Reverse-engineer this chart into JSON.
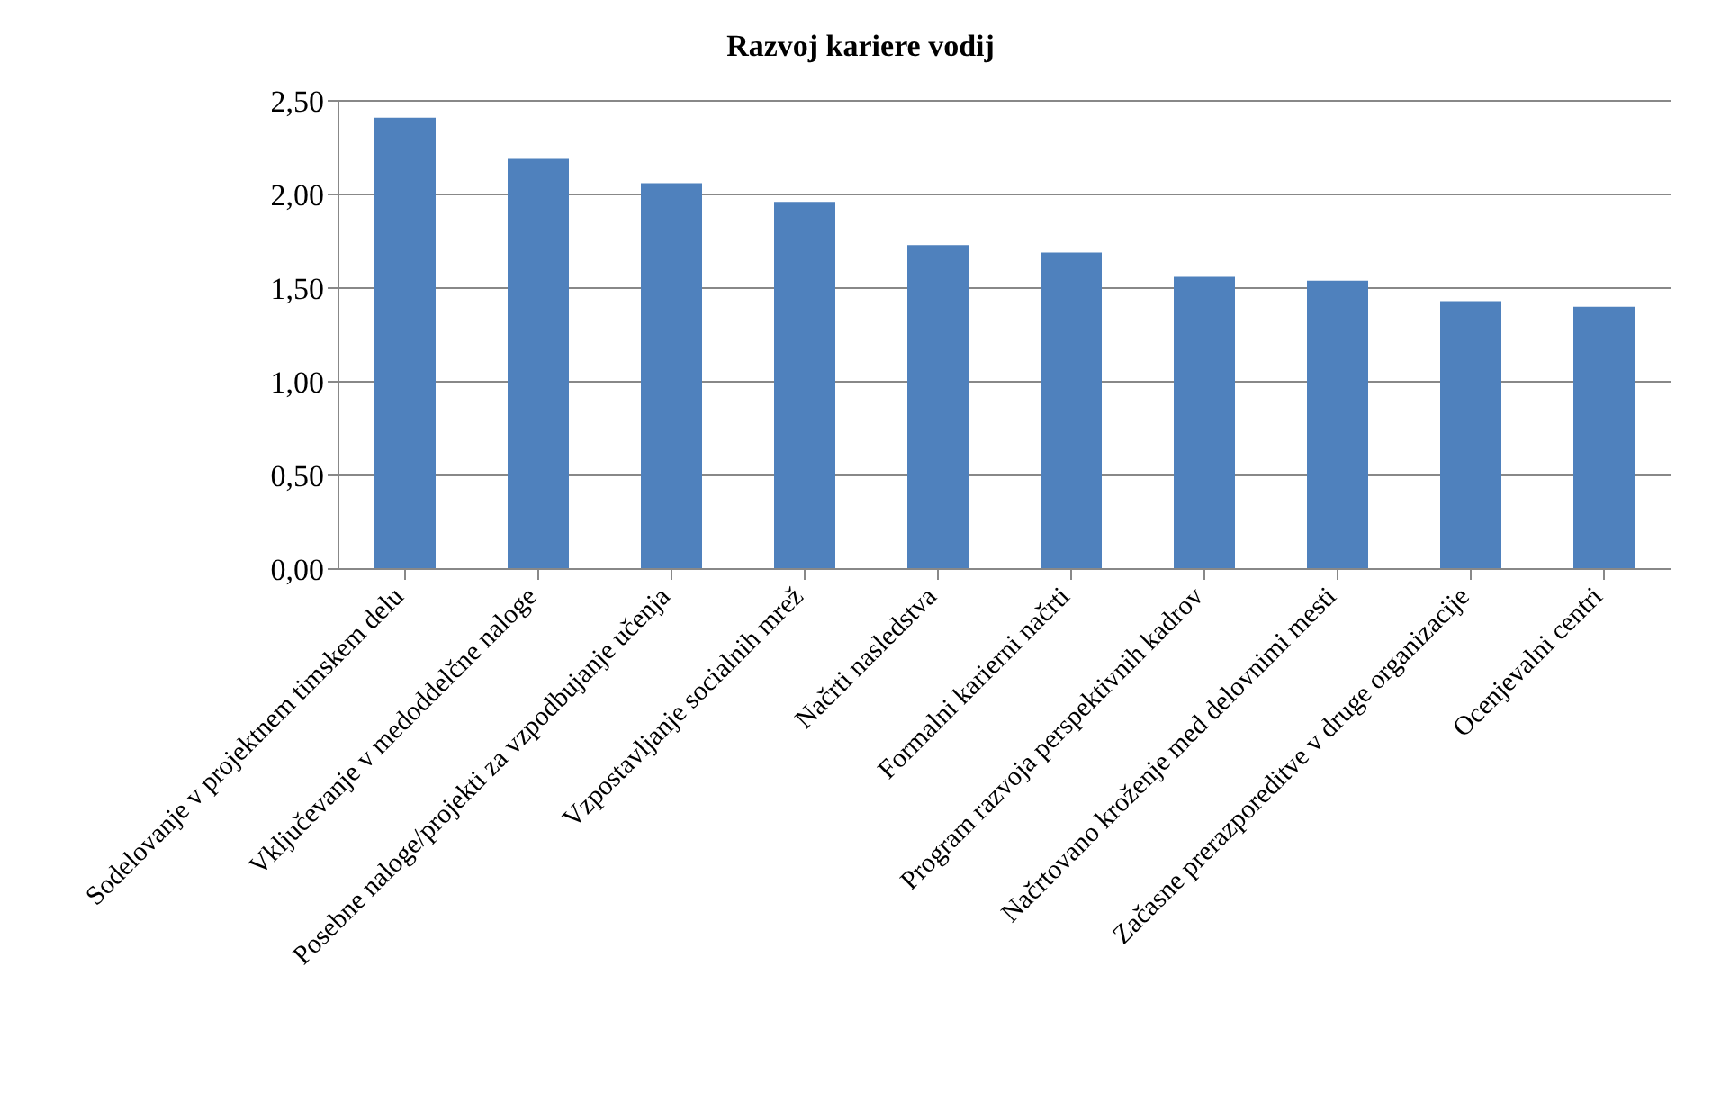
{
  "chart_data": {
    "type": "bar",
    "title": "Razvoj kariere vodij",
    "categories": [
      "Sodelovanje v projektnem timskem delu",
      "Vključevanje v medoddelčne naloge",
      "Posebne naloge/projekti za vzpodbujanje učenja",
      "Vzpostavljanje socialnih mrež",
      "Načrti nasledstva",
      "Formalni karierni načrti",
      "Program razvoja perspektivnih kadrov",
      "Načrtovano kroženje med delovnimi mesti",
      "Začasne prerazporeditve v druge organizacije",
      "Ocenjevalni centri"
    ],
    "values": [
      2.41,
      2.19,
      2.06,
      1.96,
      1.73,
      1.69,
      1.56,
      1.54,
      1.43,
      1.4
    ],
    "color": "#4f81bd",
    "ylim": [
      0,
      2.5
    ],
    "yticks": [
      {
        "value": 0,
        "label": "0,00"
      },
      {
        "value": 0.5,
        "label": "0,50"
      },
      {
        "value": 1,
        "label": "1,00"
      },
      {
        "value": 1.5,
        "label": "1,50"
      },
      {
        "value": 2,
        "label": "2,00"
      },
      {
        "value": 2.5,
        "label": "2,50"
      }
    ],
    "grid": "y"
  }
}
